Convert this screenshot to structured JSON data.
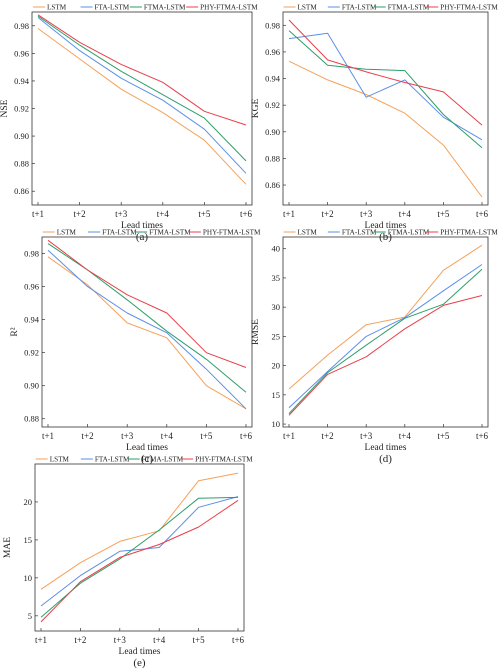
{
  "legend_labels": [
    "LSTM",
    "FTA-LSTM",
    "FTMA-LSTM",
    "PHY-FTMA-LSTM"
  ],
  "colors": {
    "LSTM": "#f5a15a",
    "FTA-LSTM": "#5b8fe8",
    "FTMA-LSTM": "#2e9e6a",
    "PHY-FTMA-LSTM": "#e8404a",
    "axis": "#333333"
  },
  "chart_data": [
    {
      "type": "line",
      "panel_label": "(a)",
      "xlabel": "Lead times",
      "ylabel": "NSE",
      "categories": [
        "t+1",
        "t+2",
        "t+3",
        "t+4",
        "t+5",
        "t+6"
      ],
      "ylim": [
        0.85,
        0.99
      ],
      "yticks": [
        0.86,
        0.88,
        0.9,
        0.92,
        0.94,
        0.96,
        0.98
      ],
      "ytick_labels": [
        "0.86",
        "0.88",
        "0.90",
        "0.92",
        "0.94",
        "0.96",
        "0.98"
      ],
      "legend_position": "top",
      "series": [
        {
          "name": "LSTM",
          "values": [
            0.978,
            0.956,
            0.934,
            0.917,
            0.897,
            0.865
          ]
        },
        {
          "name": "FTA-LSTM",
          "values": [
            0.986,
            0.962,
            0.942,
            0.926,
            0.905,
            0.873
          ]
        },
        {
          "name": "FTMA-LSTM",
          "values": [
            0.987,
            0.966,
            0.947,
            0.93,
            0.913,
            0.882
          ]
        },
        {
          "name": "PHY-FTMA-LSTM",
          "values": [
            0.988,
            0.968,
            0.952,
            0.939,
            0.918,
            0.908
          ]
        }
      ]
    },
    {
      "type": "line",
      "panel_label": "(b)",
      "xlabel": "Lead times",
      "ylabel": "KGE",
      "categories": [
        "t+1",
        "t+2",
        "t+3",
        "t+4",
        "t+5",
        "t+6"
      ],
      "ylim": [
        0.845,
        0.99
      ],
      "yticks": [
        0.86,
        0.88,
        0.9,
        0.92,
        0.94,
        0.96,
        0.98
      ],
      "ytick_labels": [
        "0.86",
        "0.88",
        "0.90",
        "0.92",
        "0.94",
        "0.96",
        "0.98"
      ],
      "legend_position": "top",
      "series": [
        {
          "name": "LSTM",
          "values": [
            0.953,
            0.939,
            0.928,
            0.914,
            0.89,
            0.851
          ]
        },
        {
          "name": "FTA-LSTM",
          "values": [
            0.97,
            0.974,
            0.926,
            0.939,
            0.911,
            0.894
          ]
        },
        {
          "name": "FTMA-LSTM",
          "values": [
            0.976,
            0.95,
            0.947,
            0.946,
            0.913,
            0.888
          ]
        },
        {
          "name": "PHY-FTMA-LSTM",
          "values": [
            0.984,
            0.954,
            0.945,
            0.937,
            0.93,
            0.905
          ]
        }
      ]
    },
    {
      "type": "line",
      "panel_label": "(c)",
      "xlabel": "Lead times",
      "ylabel": "R²",
      "categories": [
        "t+1",
        "t+2",
        "t+3",
        "t+4",
        "t+5",
        "t+6"
      ],
      "ylim": [
        0.875,
        0.99
      ],
      "yticks": [
        0.88,
        0.9,
        0.92,
        0.94,
        0.96,
        0.98
      ],
      "ytick_labels": [
        "0.88",
        "0.90",
        "0.92",
        "0.94",
        "0.96",
        "0.98"
      ],
      "legend_position": "top",
      "series": [
        {
          "name": "LSTM",
          "values": [
            0.978,
            0.961,
            0.938,
            0.929,
            0.9,
            0.886
          ]
        },
        {
          "name": "FTA-LSTM",
          "values": [
            0.982,
            0.96,
            0.944,
            0.932,
            0.91,
            0.886
          ]
        },
        {
          "name": "FTMA-LSTM",
          "values": [
            0.986,
            0.97,
            0.952,
            0.933,
            0.916,
            0.896
          ]
        },
        {
          "name": "PHY-FTMA-LSTM",
          "values": [
            0.988,
            0.97,
            0.955,
            0.944,
            0.92,
            0.911
          ]
        }
      ]
    },
    {
      "type": "line",
      "panel_label": "(d)",
      "xlabel": "Lead times",
      "ylabel": "RMSE",
      "categories": [
        "t+1",
        "t+2",
        "t+3",
        "t+4",
        "t+5",
        "t+6"
      ],
      "ylim": [
        9.5,
        42
      ],
      "yticks": [
        10,
        15,
        20,
        25,
        30,
        35,
        40
      ],
      "ytick_labels": [
        "10",
        "15",
        "20",
        "25",
        "30",
        "35",
        "40"
      ],
      "legend_position": "top",
      "series": [
        {
          "name": "LSTM",
          "values": [
            16.0,
            21.8,
            27.0,
            28.3,
            36.3,
            40.6
          ]
        },
        {
          "name": "FTA-LSTM",
          "values": [
            12.8,
            19.0,
            25.0,
            28.2,
            32.8,
            37.3
          ]
        },
        {
          "name": "FTMA-LSTM",
          "values": [
            11.8,
            18.8,
            23.5,
            28.1,
            30.5,
            36.5
          ]
        },
        {
          "name": "PHY-FTMA-LSTM",
          "values": [
            11.5,
            18.5,
            21.5,
            26.3,
            30.3,
            32.0
          ]
        }
      ]
    },
    {
      "type": "line",
      "panel_label": "(e)",
      "xlabel": "Lead times",
      "ylabel": "MAE",
      "categories": [
        "t+1",
        "t+2",
        "t+3",
        "t+4",
        "t+5",
        "t+6"
      ],
      "ylim": [
        3,
        25
      ],
      "yticks": [
        5,
        10,
        15,
        20
      ],
      "ytick_labels": [
        "5",
        "10",
        "15",
        "20"
      ],
      "legend_position": "top",
      "series": [
        {
          "name": "LSTM",
          "values": [
            8.5,
            12.0,
            14.8,
            16.2,
            22.8,
            23.8
          ]
        },
        {
          "name": "FTA-LSTM",
          "values": [
            6.3,
            10.3,
            13.5,
            14.0,
            19.3,
            20.7
          ]
        },
        {
          "name": "FTMA-LSTM",
          "values": [
            4.8,
            9.3,
            12.5,
            16.3,
            20.5,
            20.6
          ]
        },
        {
          "name": "PHY-FTMA-LSTM",
          "values": [
            4.2,
            9.5,
            12.7,
            14.4,
            16.7,
            20.2
          ]
        }
      ]
    }
  ]
}
